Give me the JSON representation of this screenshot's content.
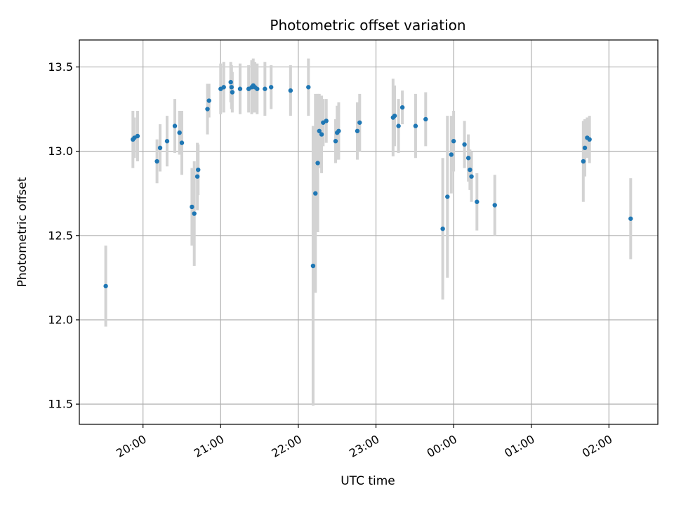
{
  "chart_data": {
    "type": "scatter",
    "title": "Photometric offset variation",
    "xlabel": "UTC time",
    "ylabel": "Photometric offset",
    "x_tick_labels": [
      "20:00",
      "21:00",
      "22:00",
      "23:00",
      "00:00",
      "01:00",
      "02:00"
    ],
    "y_tick_labels": [
      "11.5",
      "12.0",
      "12.5",
      "13.0",
      "13.5"
    ],
    "y_ticks": [
      11.5,
      12.0,
      12.5,
      13.0,
      13.5
    ],
    "x_ticks_hours_since_20": [
      0,
      1,
      2,
      3,
      4,
      5,
      6
    ],
    "xlim_hours_since_20": [
      -0.82,
      6.63
    ],
    "ylim": [
      11.38,
      13.66
    ],
    "grid": true,
    "colors": {
      "points": "#1f77b4",
      "errorbars": "#d3d3d3",
      "grid": "#b0b0b0"
    },
    "series": [
      {
        "x": [
          -0.48,
          -0.13,
          -0.11,
          -0.07,
          0.18,
          0.22,
          0.31,
          0.41,
          0.47,
          0.5,
          0.63,
          0.66,
          0.7,
          0.71,
          0.83,
          0.85,
          1.0,
          1.04,
          1.13,
          1.14,
          1.15,
          1.25,
          1.36,
          1.4,
          1.42,
          1.44,
          1.47,
          1.57,
          1.65,
          1.9,
          2.13,
          2.19,
          2.22,
          2.25,
          2.27,
          2.3,
          2.32,
          2.36,
          2.48,
          2.5,
          2.52,
          2.76,
          2.79,
          3.22,
          3.24,
          3.29,
          3.34,
          3.51,
          3.64,
          3.86,
          3.92,
          3.97,
          4.0,
          4.14,
          4.19,
          4.21,
          4.23,
          4.3,
          4.53,
          5.67,
          5.69,
          5.72,
          5.75,
          6.28
        ],
        "y": [
          12.2,
          13.07,
          13.08,
          13.09,
          12.94,
          13.02,
          13.06,
          13.15,
          13.11,
          13.05,
          12.67,
          12.63,
          12.85,
          12.89,
          13.25,
          13.3,
          13.37,
          13.38,
          13.41,
          13.38,
          13.35,
          13.37,
          13.37,
          13.38,
          13.39,
          13.38,
          13.37,
          13.37,
          13.38,
          13.36,
          13.38,
          12.32,
          12.75,
          12.93,
          13.12,
          13.1,
          13.17,
          13.18,
          13.06,
          13.11,
          13.12,
          13.12,
          13.17,
          13.2,
          13.21,
          13.15,
          13.26,
          13.15,
          13.19,
          12.54,
          12.73,
          12.98,
          13.06,
          13.04,
          12.96,
          12.89,
          12.85,
          12.7,
          12.68,
          12.94,
          13.02,
          13.08,
          13.07,
          12.6
        ],
        "err": [
          0.24,
          0.17,
          0.12,
          0.15,
          0.13,
          0.14,
          0.15,
          0.16,
          0.13,
          0.19,
          0.23,
          0.31,
          0.2,
          0.15,
          0.15,
          0.1,
          0.15,
          0.15,
          0.12,
          0.13,
          0.12,
          0.15,
          0.14,
          0.16,
          0.16,
          0.15,
          0.15,
          0.16,
          0.13,
          0.15,
          0.17,
          0.83,
          0.59,
          0.41,
          0.22,
          0.23,
          0.14,
          0.13,
          0.13,
          0.16,
          0.17,
          0.17,
          0.17,
          0.23,
          0.18,
          0.16,
          0.1,
          0.19,
          0.16,
          0.42,
          0.48,
          0.23,
          0.18,
          0.14,
          0.14,
          0.12,
          0.15,
          0.17,
          0.18,
          0.24,
          0.17,
          0.12,
          0.14,
          0.24
        ]
      }
    ]
  }
}
